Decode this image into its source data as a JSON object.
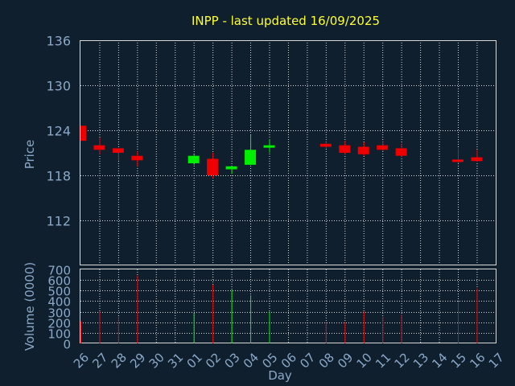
{
  "chart_data": {
    "type": "candlestick",
    "title": "INPP - last updated 16/09/2025",
    "xlabel": "Day",
    "ylabel_price": "Price",
    "ylabel_volume": "Volume (0000)",
    "x_tick_labels": [
      "26",
      "27",
      "28",
      "29",
      "30",
      "31",
      "01",
      "02",
      "03",
      "04",
      "05",
      "06",
      "07",
      "08",
      "09",
      "10",
      "11",
      "12",
      "13",
      "14",
      "15",
      "16",
      "17"
    ],
    "price_ylim": [
      106,
      136
    ],
    "price_ticks": [
      112,
      118,
      124,
      130,
      136
    ],
    "volume_ylim": [
      0,
      700
    ],
    "volume_ticks": [
      0,
      100,
      200,
      300,
      400,
      500,
      600,
      700
    ],
    "grid": true,
    "colors": {
      "background": "#0f1f2e",
      "title": "#ffff33",
      "axis_text": "#8aa8c8",
      "frame": "#d8d8d8",
      "grid": "#d8d8d8",
      "up": "#00ee00",
      "down": "#ee0000"
    },
    "candles": [
      {
        "day": "26",
        "open": 124.6,
        "high": 124.6,
        "low": 122.6,
        "close": 122.6,
        "volume": 210
      },
      {
        "day": "27",
        "open": 122.0,
        "high": 123.0,
        "low": 120.8,
        "close": 121.4,
        "volume": 300
      },
      {
        "day": "28",
        "open": 121.6,
        "high": 121.6,
        "low": 120.0,
        "close": 121.0,
        "volume": 255
      },
      {
        "day": "29",
        "open": 120.6,
        "high": 121.2,
        "low": 119.2,
        "close": 120.0,
        "volume": 640
      },
      {
        "day": "01",
        "open": 119.6,
        "high": 120.8,
        "low": 119.4,
        "close": 120.6,
        "volume": 285
      },
      {
        "day": "02",
        "open": 120.2,
        "high": 121.0,
        "low": 117.6,
        "close": 118.0,
        "volume": 555
      },
      {
        "day": "03",
        "open": 118.8,
        "high": 119.2,
        "low": 118.2,
        "close": 119.2,
        "volume": 505
      },
      {
        "day": "04",
        "open": 119.4,
        "high": 123.4,
        "low": 119.4,
        "close": 121.4,
        "volume": 455
      },
      {
        "day": "05",
        "open": 121.8,
        "high": 122.8,
        "low": 121.0,
        "close": 122.0,
        "volume": 300
      },
      {
        "day": "08",
        "open": 122.2,
        "high": 122.6,
        "low": 121.6,
        "close": 121.8,
        "volume": 205
      },
      {
        "day": "09",
        "open": 122.0,
        "high": 122.6,
        "low": 120.8,
        "close": 121.0,
        "volume": 200
      },
      {
        "day": "10",
        "open": 121.8,
        "high": 122.4,
        "low": 120.6,
        "close": 120.8,
        "volume": 300
      },
      {
        "day": "11",
        "open": 122.0,
        "high": 122.6,
        "low": 121.2,
        "close": 121.4,
        "volume": 250
      },
      {
        "day": "12",
        "open": 121.6,
        "high": 122.2,
        "low": 120.4,
        "close": 120.6,
        "volume": 270
      },
      {
        "day": "15",
        "open": 120.1,
        "high": 121.6,
        "low": 119.6,
        "close": 119.9,
        "volume": 395
      },
      {
        "day": "16",
        "open": 120.4,
        "high": 121.4,
        "low": 119.8,
        "close": 119.9,
        "volume": 520
      }
    ]
  }
}
